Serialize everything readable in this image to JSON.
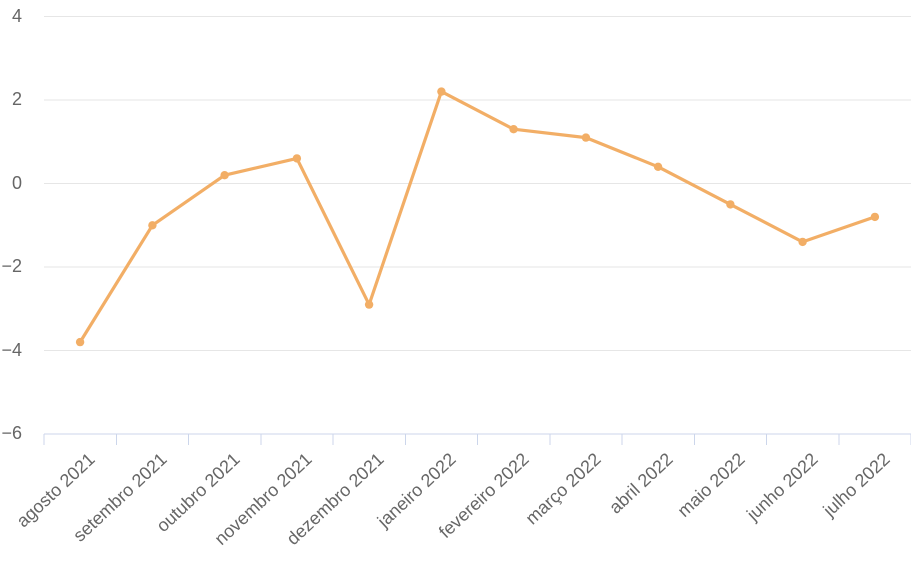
{
  "chart_data": {
    "type": "line",
    "title": "",
    "xlabel": "",
    "ylabel": "",
    "categories": [
      "agosto 2021",
      "setembro 2021",
      "outubro 2021",
      "novembro 2021",
      "dezembro 2021",
      "janeiro 2022",
      "fevereiro 2022",
      "março 2022",
      "abril 2022",
      "maio 2022",
      "junho 2022",
      "julho 2022"
    ],
    "values": [
      -3.8,
      -1.0,
      0.2,
      0.6,
      -2.9,
      2.2,
      1.3,
      1.1,
      0.4,
      -0.5,
      -1.4,
      -0.8
    ],
    "ylim": [
      -6,
      4
    ],
    "yticks": [
      {
        "value": 4,
        "label": "4"
      },
      {
        "value": 2,
        "label": "2"
      },
      {
        "value": 0,
        "label": "0"
      },
      {
        "value": -2,
        "label": "−2"
      },
      {
        "value": -4,
        "label": "−4"
      },
      {
        "value": -6,
        "label": "−6"
      }
    ],
    "grid": true,
    "legend": false,
    "colors": {
      "line": "#f2ae66",
      "marker": "#f2ae66",
      "grid": "#e6e6e6",
      "axis": "#ccd6eb",
      "label": "#666666",
      "background": "#ffffff"
    }
  }
}
